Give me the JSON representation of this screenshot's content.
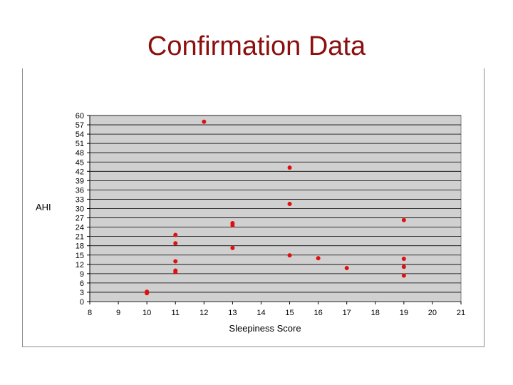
{
  "slide": {
    "title": "Confirmation Data"
  },
  "chart_data": {
    "type": "scatter",
    "title": "",
    "xlabel": "Sleepiness Score",
    "ylabel": "AHI",
    "xlim": [
      8,
      21
    ],
    "ylim": [
      0,
      60
    ],
    "x_ticks": [
      8,
      9,
      10,
      11,
      12,
      13,
      14,
      15,
      16,
      17,
      18,
      19,
      20,
      21
    ],
    "y_ticks": [
      0,
      3,
      6,
      9,
      12,
      15,
      18,
      21,
      24,
      27,
      30,
      33,
      36,
      39,
      42,
      45,
      48,
      51,
      54,
      57,
      60
    ],
    "grid": true,
    "legend": false,
    "colors": {
      "point": "#e01010",
      "plot_bg": "#d0d0d0",
      "grid": "#000000"
    },
    "points": [
      {
        "x": 10,
        "y": 2.7
      },
      {
        "x": 10,
        "y": 3.2
      },
      {
        "x": 11,
        "y": 9.5
      },
      {
        "x": 11,
        "y": 10.0
      },
      {
        "x": 11,
        "y": 13.0
      },
      {
        "x": 11,
        "y": 18.8
      },
      {
        "x": 11,
        "y": 21.5
      },
      {
        "x": 12,
        "y": 58.0
      },
      {
        "x": 13,
        "y": 17.3
      },
      {
        "x": 13,
        "y": 24.6
      },
      {
        "x": 13,
        "y": 25.3
      },
      {
        "x": 15,
        "y": 14.9
      },
      {
        "x": 15,
        "y": 31.5
      },
      {
        "x": 15,
        "y": 43.2
      },
      {
        "x": 16,
        "y": 14.0
      },
      {
        "x": 17,
        "y": 10.8
      },
      {
        "x": 19,
        "y": 8.4
      },
      {
        "x": 19,
        "y": 11.2
      },
      {
        "x": 19,
        "y": 13.8
      },
      {
        "x": 19,
        "y": 26.3
      }
    ]
  }
}
